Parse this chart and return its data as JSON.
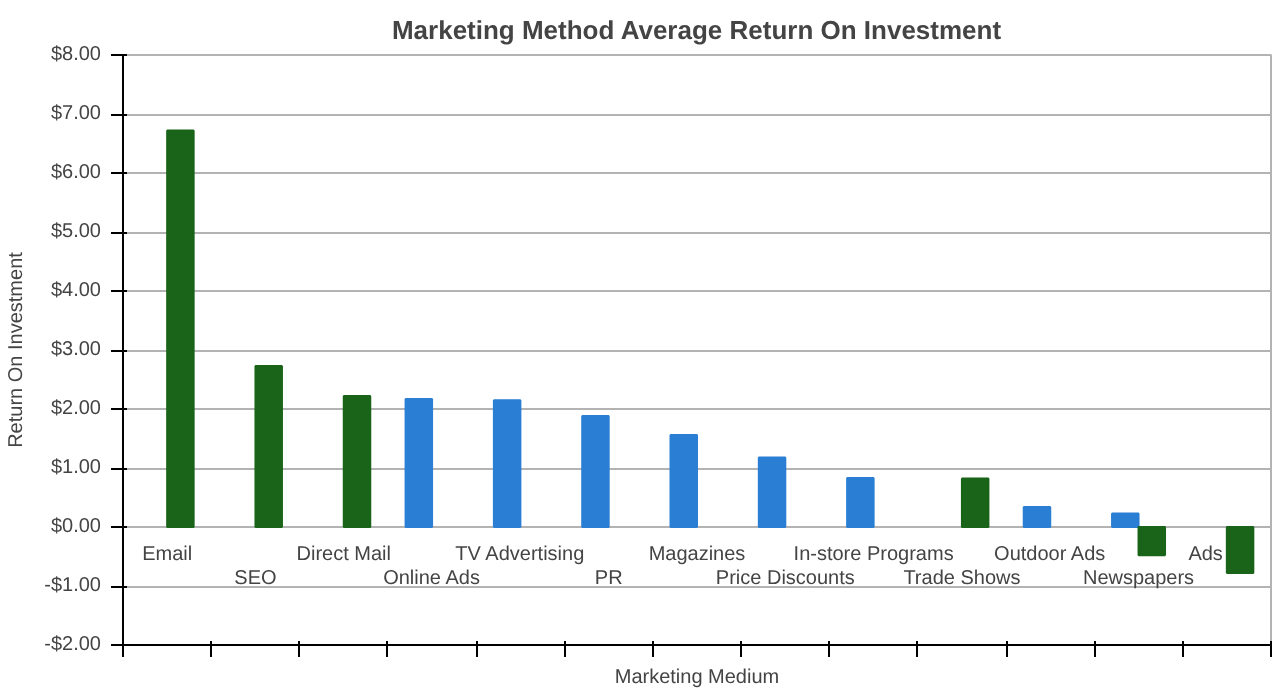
{
  "chart_data": {
    "type": "bar",
    "title": "Marketing Method Average Return On Investment",
    "xlabel": "Marketing Medium",
    "ylabel": "Return On Investment",
    "categories": [
      "Email",
      "SEO",
      "Direct Mail",
      "Online Ads",
      "TV Advertising",
      "PR",
      "Magazines",
      "Price Discounts",
      "In-store Programs",
      "Trade Shows",
      "Outdoor Ads",
      "Newspapers",
      "Ads"
    ],
    "series": [
      {
        "color": "#2a7fd4",
        "values": [
          null,
          null,
          null,
          2.17,
          2.15,
          1.88,
          1.56,
          1.18,
          0.83,
          null,
          0.34,
          0.23,
          null
        ]
      },
      {
        "color": "#196419",
        "values": [
          6.72,
          2.73,
          2.22,
          null,
          null,
          null,
          null,
          null,
          null,
          0.82,
          null,
          -0.48,
          -0.78
        ]
      }
    ],
    "ylim": [
      -2,
      8
    ],
    "yticks": [
      {
        "value": -2,
        "label": "-$2.00"
      },
      {
        "value": -1,
        "label": "-$1.00"
      },
      {
        "value": 0,
        "label": "$0.00"
      },
      {
        "value": 1,
        "label": "$1.00"
      },
      {
        "value": 2,
        "label": "$2.00"
      },
      {
        "value": 3,
        "label": "$3.00"
      },
      {
        "value": 4,
        "label": "$4.00"
      },
      {
        "value": 5,
        "label": "$5.00"
      },
      {
        "value": 6,
        "label": "$6.00"
      },
      {
        "value": 7,
        "label": "$7.00"
      },
      {
        "value": 8,
        "label": "$8.00"
      }
    ],
    "grid": "y"
  }
}
